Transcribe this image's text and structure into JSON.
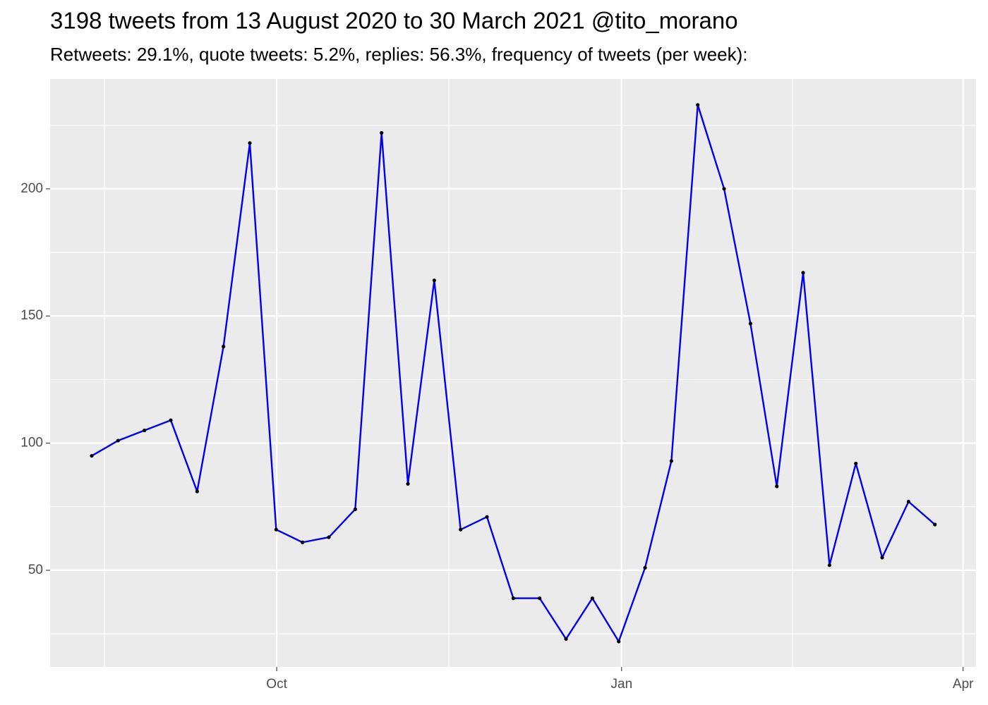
{
  "chart_data": {
    "type": "line",
    "title": "3198 tweets from 13 August 2020 to 30 March 2021 @tito_morano",
    "subtitle": "Retweets: 29.1%, quote tweets: 5.2%, replies: 56.3%, frequency of tweets (per week):",
    "categories": [
      null,
      null,
      null,
      null,
      null,
      null,
      null,
      null,
      null,
      null,
      null,
      null,
      null,
      null,
      null,
      null,
      null,
      null,
      null,
      null,
      null,
      null,
      null,
      null,
      null,
      null,
      null,
      null,
      null,
      null,
      null,
      null,
      null
    ],
    "values": [
      95,
      101,
      105,
      109,
      81,
      138,
      218,
      66,
      61,
      63,
      74,
      222,
      84,
      164,
      66,
      71,
      39,
      39,
      23,
      39,
      22,
      51,
      93,
      233,
      200,
      147,
      83,
      167,
      52,
      92,
      55,
      77,
      68
    ],
    "color": "#0000ee",
    "marker_color": "#000000",
    "xlim": [
      -1.58,
      33.56
    ],
    "xticks": [
      {
        "value": 7.02,
        "label": "Oct"
      },
      {
        "value": 20.11,
        "label": "Jan"
      },
      {
        "value": 33.07,
        "label": "Apr"
      }
    ],
    "x_minor_ticks": [
      0.48,
      13.55,
      26.6
    ],
    "ylim": [
      12.0,
      243.2
    ],
    "yticks": [
      50,
      100,
      150,
      200
    ],
    "y_minor_ticks": [
      25,
      75,
      125,
      175,
      225
    ],
    "grid": true
  }
}
